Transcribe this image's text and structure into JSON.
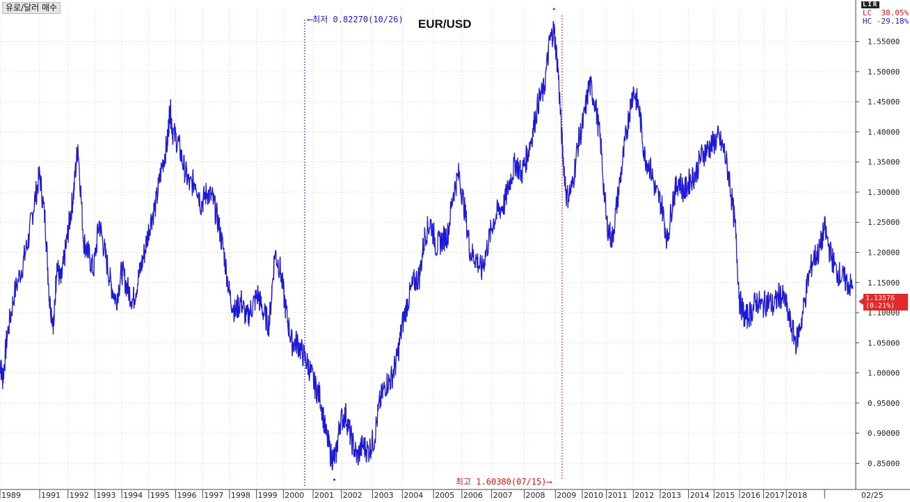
{
  "legend_label": "유로/달러 매수",
  "badge": "LIR",
  "lc_text": "LC  38.05%",
  "hc_text": "HC -29.18%",
  "annotations": {
    "low_text": "최저 0.82270(10/26)",
    "high_text": "최고 1.60380(07/15)"
  },
  "price_tag": {
    "value": "1.13576",
    "change": "(0.21%)"
  },
  "colors": {
    "line": "#1a1adb",
    "accent_up": "#d61a1a",
    "grid": "#c9c9c9",
    "price_tag_bg": "#e12a2a"
  },
  "chart_data": {
    "type": "line",
    "title": "EUR/USD",
    "xlabel": "",
    "ylabel": "",
    "xlim": [
      1989.0,
      2019.2
    ],
    "ylim": [
      0.81,
      1.605
    ],
    "x_tick_labels": [
      "1989",
      "1991",
      "1992",
      "1993",
      "1994",
      "1995",
      "1996",
      "1997",
      "1998",
      "1999",
      "2000",
      "2001",
      "2002",
      "2003",
      "2004",
      "2005",
      "2006",
      "2007",
      "2008",
      "2009",
      "2010",
      "2011",
      "2012",
      "2013",
      "2014",
      "2015",
      "2016",
      "2017",
      "2018",
      "02/25"
    ],
    "x_tick_positions": [
      1989.0,
      1990.4,
      1991.4,
      1992.35,
      1993.3,
      1994.25,
      1995.2,
      1996.15,
      1997.1,
      1998.05,
      1999.0,
      2000.05,
      2001.05,
      2002.15,
      2003.2,
      2004.3,
      2005.3,
      2006.35,
      2007.5,
      2008.6,
      2009.55,
      2010.4,
      2011.35,
      2012.3,
      2013.3,
      2014.2,
      2015.1,
      2015.95,
      2016.75,
      2018.1
    ],
    "y_ticks": [
      0.85,
      0.9,
      0.95,
      1.0,
      1.05,
      1.1,
      1.15,
      1.2,
      1.25,
      1.3,
      1.35,
      1.4,
      1.45,
      1.5,
      1.55
    ],
    "y_tick_labels": [
      "0.85000",
      "0.90000",
      "0.95000",
      "1.00000",
      "1.05000",
      "1.10000",
      "1.15000",
      "1.20000",
      "1.25000",
      "1.30000",
      "1.35000",
      "1.40000",
      "1.45000",
      "1.50000",
      "1.55000"
    ],
    "series": [
      {
        "x": [
          1989.0,
          1989.1,
          1989.25,
          1989.5,
          1989.8,
          1990.0,
          1990.2,
          1990.4,
          1990.6,
          1990.75,
          1990.9,
          1991.0,
          1991.15,
          1991.3,
          1991.45,
          1991.6,
          1991.75,
          1991.95,
          1992.1,
          1992.3,
          1992.5,
          1992.7,
          1992.9,
          1993.1,
          1993.3,
          1993.5,
          1993.7,
          1993.9,
          1994.1,
          1994.3,
          1994.5,
          1994.7,
          1994.9,
          1995.0,
          1995.1,
          1995.3,
          1995.5,
          1995.7,
          1995.9,
          1996.1,
          1996.3,
          1996.5,
          1996.7,
          1996.9,
          1997.1,
          1997.3,
          1997.5,
          1997.7,
          1997.9,
          1998.1,
          1998.3,
          1998.5,
          1998.7,
          1998.9,
          1999.1,
          1999.3,
          1999.5,
          1999.7,
          1999.9,
          2000.1,
          2000.3,
          2000.5,
          2000.7,
          2000.85,
          2001.0,
          2001.2,
          2001.4,
          2001.6,
          2001.8,
          2002.0,
          2002.2,
          2002.4,
          2002.6,
          2002.8,
          2003.0,
          2003.2,
          2003.4,
          2003.6,
          2003.8,
          2004.0,
          2004.2,
          2004.4,
          2004.6,
          2004.8,
          2005.0,
          2005.2,
          2005.4,
          2005.6,
          2005.8,
          2006.0,
          2006.2,
          2006.4,
          2006.6,
          2006.8,
          2007.0,
          2007.2,
          2007.4,
          2007.6,
          2007.8,
          2008.0,
          2008.2,
          2008.4,
          2008.55,
          2008.7,
          2008.85,
          2009.0,
          2009.2,
          2009.4,
          2009.6,
          2009.8,
          2010.0,
          2010.2,
          2010.4,
          2010.6,
          2010.8,
          2011.0,
          2011.2,
          2011.35,
          2011.55,
          2011.75,
          2011.95,
          2012.15,
          2012.35,
          2012.55,
          2012.75,
          2012.95,
          2013.15,
          2013.35,
          2013.55,
          2013.75,
          2013.95,
          2014.15,
          2014.35,
          2014.55,
          2014.75,
          2014.95,
          2015.1,
          2015.3,
          2015.5,
          2015.7,
          2015.9,
          2016.1,
          2016.3,
          2016.5,
          2016.7,
          2016.9,
          2017.1,
          2017.3,
          2017.5,
          2017.7,
          2017.9,
          2018.1,
          2018.3,
          2018.5,
          2018.7,
          2018.9,
          2019.1
        ],
        "y": [
          1.02,
          0.99,
          1.06,
          1.13,
          1.18,
          1.22,
          1.28,
          1.33,
          1.25,
          1.12,
          1.08,
          1.18,
          1.15,
          1.2,
          1.25,
          1.3,
          1.38,
          1.22,
          1.2,
          1.17,
          1.25,
          1.2,
          1.15,
          1.12,
          1.17,
          1.14,
          1.12,
          1.16,
          1.2,
          1.25,
          1.28,
          1.34,
          1.38,
          1.44,
          1.4,
          1.38,
          1.34,
          1.31,
          1.32,
          1.28,
          1.3,
          1.29,
          1.25,
          1.2,
          1.13,
          1.1,
          1.12,
          1.09,
          1.11,
          1.13,
          1.1,
          1.08,
          1.2,
          1.17,
          1.1,
          1.05,
          1.05,
          1.03,
          1.01,
          0.98,
          0.96,
          0.9,
          0.86,
          0.86,
          0.92,
          0.93,
          0.89,
          0.86,
          0.88,
          0.87,
          0.89,
          0.95,
          0.98,
          0.99,
          1.02,
          1.08,
          1.12,
          1.15,
          1.16,
          1.23,
          1.25,
          1.21,
          1.22,
          1.23,
          1.3,
          1.33,
          1.27,
          1.2,
          1.19,
          1.17,
          1.21,
          1.25,
          1.27,
          1.28,
          1.32,
          1.35,
          1.33,
          1.36,
          1.4,
          1.45,
          1.47,
          1.55,
          1.57,
          1.5,
          1.37,
          1.29,
          1.31,
          1.38,
          1.42,
          1.48,
          1.45,
          1.38,
          1.25,
          1.22,
          1.29,
          1.36,
          1.43,
          1.47,
          1.44,
          1.36,
          1.34,
          1.3,
          1.28,
          1.22,
          1.29,
          1.32,
          1.3,
          1.32,
          1.33,
          1.36,
          1.37,
          1.38,
          1.39,
          1.37,
          1.32,
          1.24,
          1.12,
          1.09,
          1.1,
          1.12,
          1.11,
          1.12,
          1.11,
          1.13,
          1.12,
          1.08,
          1.05,
          1.09,
          1.15,
          1.19,
          1.2,
          1.24,
          1.2,
          1.17,
          1.16,
          1.15,
          1.14
        ]
      }
    ],
    "annotations": [
      {
        "x": 2000.8,
        "y": 0.8227,
        "label": "최저 0.82270(10/26)"
      },
      {
        "x": 2008.55,
        "y": 1.6038,
        "label": "최고 1.60380(07/15)"
      }
    ]
  }
}
